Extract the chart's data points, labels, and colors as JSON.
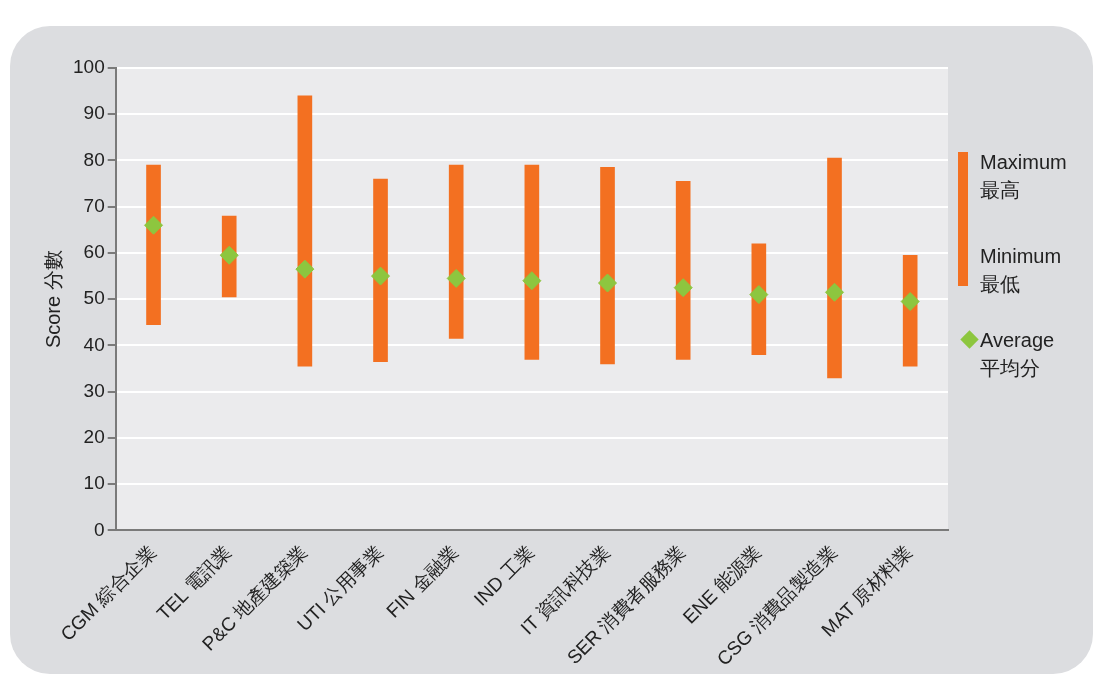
{
  "chart_data": {
    "type": "bar",
    "ylabel": "Score 分數",
    "categories": [
      "CGM 綜合企業",
      "TEL 電訊業",
      "P&C 地產建築業",
      "UTI 公用事業",
      "FIN 金融業",
      "IND 工業",
      "IT 資訊科技業",
      "SER 消費者服務業",
      "ENE 能源業",
      "CSG 消費品製造業",
      "MAT 原材料業"
    ],
    "series": [
      {
        "type": "bar",
        "name": "Maximum\n最高\nMinimum\n最低",
        "color": "#f37021",
        "base": [
          44.5,
          50.5,
          35.5,
          36.5,
          41.5,
          37,
          36,
          37,
          38,
          33,
          35.5
        ],
        "values": [
          34.5,
          17.5,
          58.5,
          39.5,
          37.5,
          42,
          42.5,
          38.5,
          24,
          47.5,
          24
        ]
      },
      {
        "type": "scatter",
        "name": "Average\n平均分",
        "color": "#8dc63f",
        "marker": "diamond",
        "x": [
          "CGM 綜合企業",
          "TEL 電訊業",
          "P&C 地產建築業",
          "UTI 公用事業",
          "FIN 金融業",
          "IND 工業",
          "IT 資訊科技業",
          "SER 消費者服務業",
          "ENE 能源業",
          "CSG 消費品製造業",
          "MAT 原材料業"
        ],
        "values": [
          66,
          59.5,
          56.5,
          55,
          54.5,
          54,
          53.5,
          52.5,
          51,
          51.5,
          49.5
        ]
      }
    ],
    "ylim": [
      0,
      100
    ],
    "yticks": [
      0,
      10,
      20,
      30,
      40,
      50,
      60,
      70,
      80,
      90,
      100
    ],
    "grid": "y",
    "legend": "right"
  }
}
